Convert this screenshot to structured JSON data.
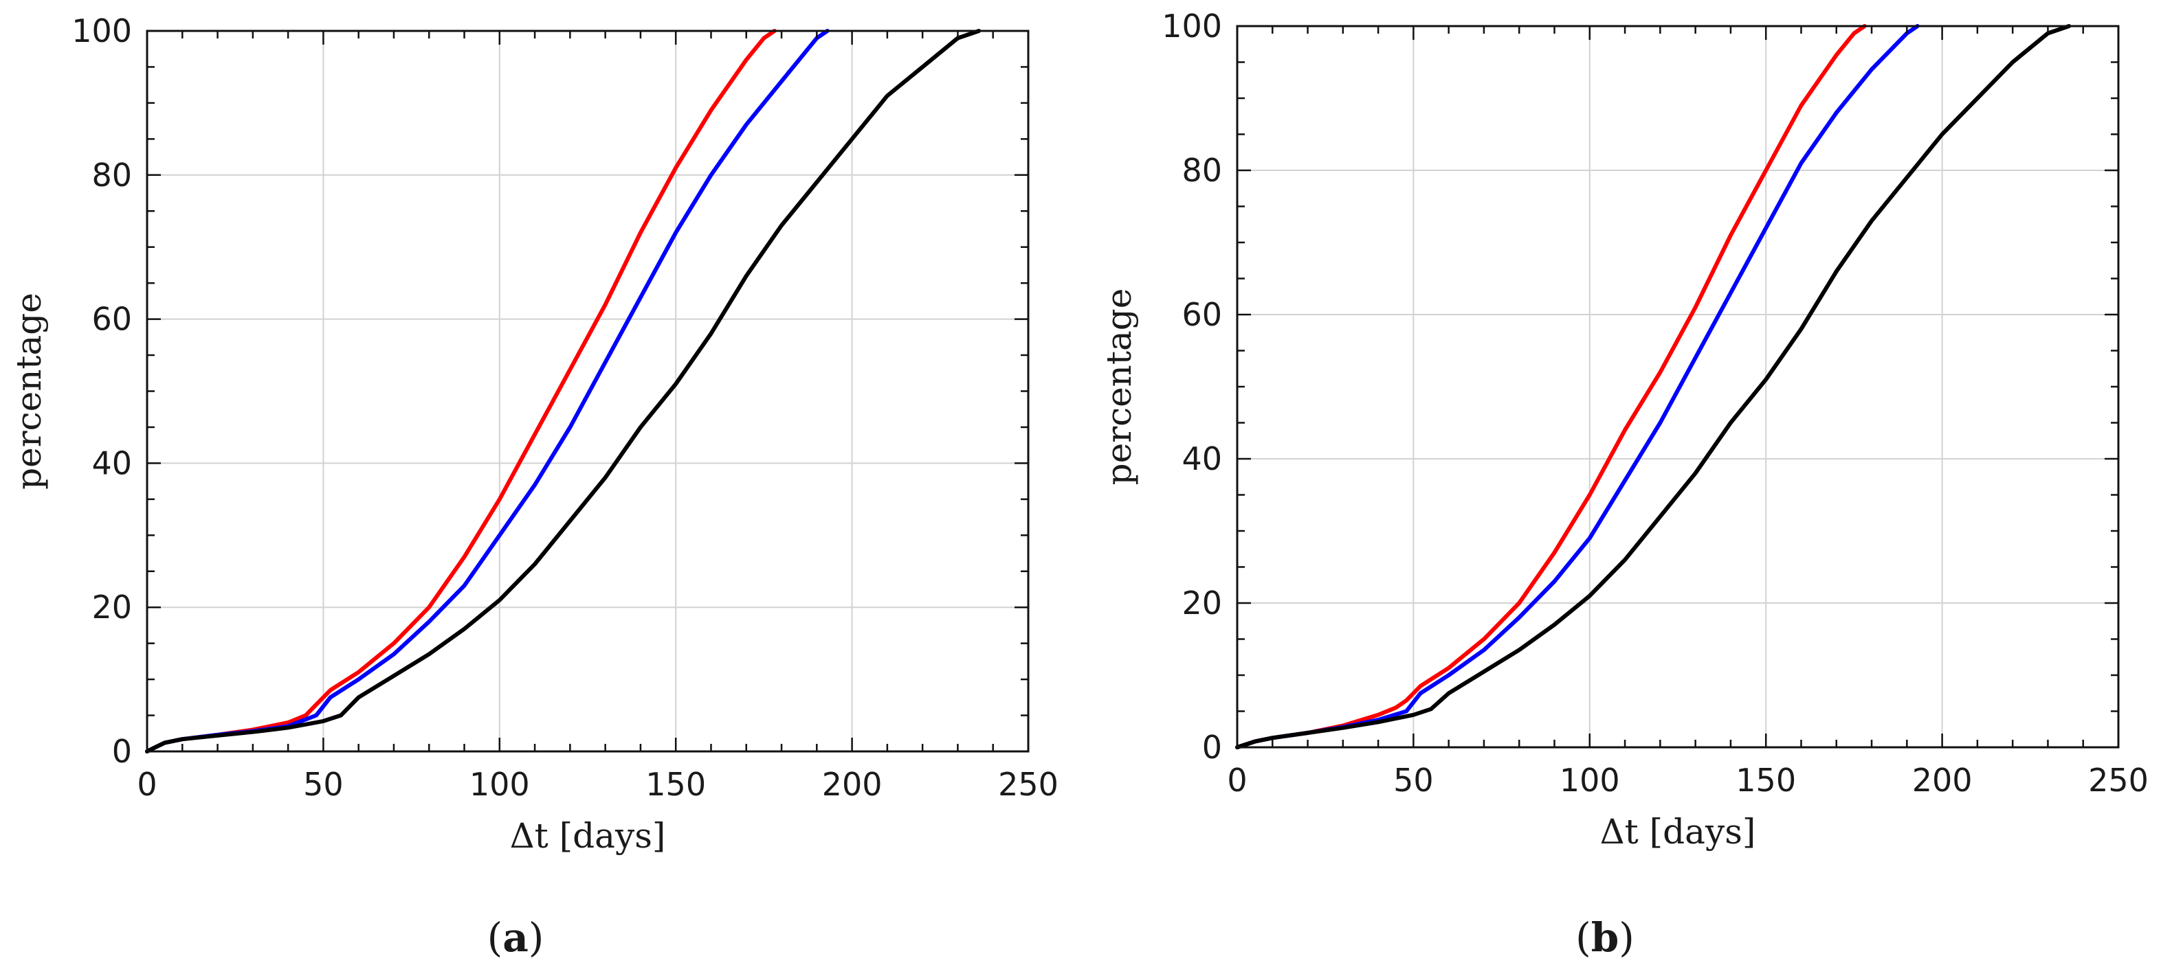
{
  "chart_data": [
    {
      "type": "line",
      "panel_label": "a",
      "xlabel": "Δt [days]",
      "ylabel": "percentage",
      "xlim": [
        0,
        250
      ],
      "ylim": [
        0,
        100
      ],
      "xticks": [
        "0",
        "50",
        "100",
        "150",
        "200",
        "250"
      ],
      "yticks": [
        "0",
        "20",
        "40",
        "60",
        "80",
        "100"
      ],
      "grid": true,
      "series": [
        {
          "name": "red",
          "color": "#ff0000",
          "x": [
            0,
            2,
            5,
            10,
            20,
            30,
            40,
            45,
            48,
            52,
            60,
            70,
            80,
            90,
            100,
            110,
            120,
            130,
            140,
            150,
            160,
            170,
            175,
            178
          ],
          "y": [
            0,
            0.5,
            1.2,
            1.7,
            2.3,
            3,
            4,
            5,
            6.5,
            8.5,
            11,
            15,
            20,
            27,
            35,
            44,
            53,
            62,
            72,
            81,
            89,
            96,
            99,
            100
          ]
        },
        {
          "name": "blue",
          "color": "#0000ff",
          "x": [
            0,
            2,
            5,
            10,
            20,
            30,
            40,
            48,
            52,
            60,
            70,
            80,
            90,
            100,
            110,
            120,
            130,
            140,
            150,
            160,
            170,
            180,
            190,
            193
          ],
          "y": [
            0,
            0.5,
            1.2,
            1.7,
            2.3,
            2.8,
            3.5,
            5,
            7.5,
            10,
            13.5,
            18,
            23,
            30,
            37,
            45,
            54,
            63,
            72,
            80,
            87,
            93,
            99,
            100
          ]
        },
        {
          "name": "black",
          "color": "#000000",
          "x": [
            0,
            2,
            5,
            10,
            20,
            30,
            40,
            50,
            55,
            60,
            70,
            80,
            90,
            100,
            110,
            120,
            130,
            140,
            150,
            160,
            170,
            180,
            190,
            200,
            210,
            220,
            230,
            236
          ],
          "y": [
            0,
            0.5,
            1.2,
            1.7,
            2.2,
            2.7,
            3.3,
            4.2,
            5,
            7.5,
            10.5,
            13.5,
            17,
            21,
            26,
            32,
            38,
            45,
            51,
            58,
            66,
            73,
            79,
            85,
            91,
            95,
            99,
            100
          ]
        }
      ]
    },
    {
      "type": "line",
      "panel_label": "b",
      "xlabel": "Δt [days]",
      "ylabel": "percentage",
      "xlim": [
        0,
        250
      ],
      "ylim": [
        0,
        100
      ],
      "xticks": [
        "0",
        "50",
        "100",
        "150",
        "200",
        "250"
      ],
      "yticks": [
        "0",
        "20",
        "40",
        "60",
        "80",
        "100"
      ],
      "grid": true,
      "series": [
        {
          "name": "red",
          "color": "#ff0000",
          "x": [
            0,
            5,
            10,
            20,
            30,
            40,
            45,
            48,
            52,
            60,
            70,
            80,
            90,
            100,
            110,
            120,
            130,
            140,
            150,
            160,
            170,
            175,
            178
          ],
          "y": [
            0,
            0.8,
            1.3,
            2,
            3,
            4.5,
            5.5,
            6.5,
            8.5,
            11,
            15,
            20,
            27,
            35,
            44,
            52,
            61,
            71,
            80,
            89,
            96,
            99,
            100
          ]
        },
        {
          "name": "blue",
          "color": "#0000ff",
          "x": [
            0,
            5,
            10,
            20,
            30,
            40,
            48,
            52,
            60,
            70,
            80,
            90,
            100,
            110,
            120,
            130,
            140,
            150,
            160,
            170,
            180,
            190,
            193
          ],
          "y": [
            0,
            0.8,
            1.3,
            2,
            2.8,
            3.8,
            5,
            7.5,
            10,
            13.5,
            18,
            23,
            29,
            37,
            45,
            54,
            63,
            72,
            81,
            88,
            94,
            99,
            100
          ]
        },
        {
          "name": "black",
          "color": "#000000",
          "x": [
            0,
            5,
            10,
            20,
            30,
            40,
            50,
            55,
            60,
            70,
            80,
            90,
            100,
            110,
            120,
            130,
            140,
            150,
            160,
            170,
            180,
            190,
            200,
            210,
            220,
            230,
            236
          ],
          "y": [
            0,
            0.8,
            1.3,
            2,
            2.7,
            3.5,
            4.5,
            5.3,
            7.5,
            10.5,
            13.5,
            17,
            21,
            26,
            32,
            38,
            45,
            51,
            58,
            66,
            73,
            79,
            85,
            90,
            95,
            99,
            100
          ]
        }
      ]
    }
  ]
}
